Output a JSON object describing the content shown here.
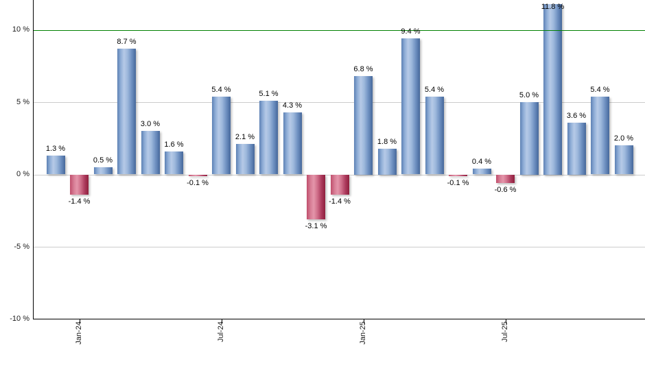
{
  "chart_data": {
    "type": "bar",
    "title": "",
    "xlabel": "",
    "ylabel": "",
    "values": [
      1.3,
      -1.4,
      0.5,
      8.7,
      3.0,
      1.6,
      -0.1,
      5.4,
      2.1,
      5.1,
      4.3,
      -3.1,
      -1.4,
      6.8,
      1.8,
      9.4,
      5.4,
      -0.1,
      0.4,
      -0.6,
      5.0,
      11.8,
      3.6,
      5.4,
      2.0
    ],
    "bar_labels": [
      "1.3 %",
      "-1.4 %",
      "0.5 %",
      "8.7 %",
      "3.0 %",
      "1.6 %",
      "-0.1 %",
      "5.4 %",
      "2.1 %",
      "5.1 %",
      "4.3 %",
      "-3.1 %",
      "-1.4 %",
      "6.8 %",
      "1.8 %",
      "9.4 %",
      "5.4 %",
      "-0.1 %",
      "0.4 %",
      "-0.6 %",
      "5.0 %",
      "11.8 %",
      "3.6 %",
      "5.4 %",
      "2.0 %"
    ],
    "y_tick_labels": [
      "10 %",
      "5 %",
      "0 %",
      "-5 %",
      "-10 %"
    ],
    "y_tick_values": [
      10,
      5,
      0,
      -5,
      -10
    ],
    "x_tick_labels": [
      "Jan-24",
      "Jul-24",
      "Jan-25",
      "Jul-25"
    ],
    "x_tick_bar_indices": [
      1,
      7,
      13,
      19
    ],
    "ylim": [
      -10,
      12
    ],
    "grid": true,
    "legend_position": "none",
    "threshold_line": {
      "value": 10,
      "color": "#008000"
    },
    "colors": {
      "positive_bar": "#7ea0cf",
      "negative_bar": "#c14667",
      "gridline": "#cccccc",
      "axis": "#000000",
      "label_text": "#000000",
      "background": "#ffffff"
    }
  }
}
